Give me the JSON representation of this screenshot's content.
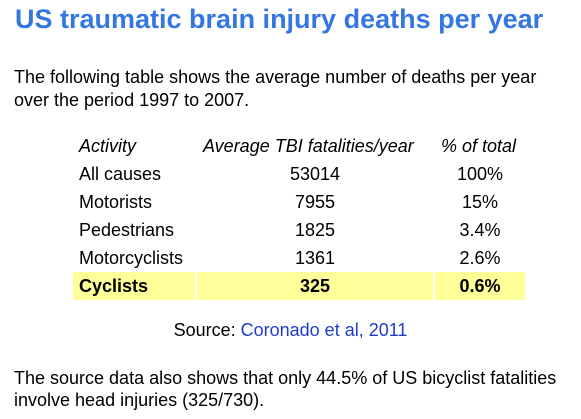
{
  "title": "US traumatic brain injury deaths per year",
  "intro": "The following table shows the average number of deaths per year over the period 1997 to 2007.",
  "table": {
    "headers": [
      "Activity",
      "Average TBI fatalities/year",
      "% of total"
    ],
    "rows": [
      {
        "activity": "All causes",
        "average": "53014",
        "percent": "100%"
      },
      {
        "activity": "Motorists",
        "average": "7955",
        "percent": "15%"
      },
      {
        "activity": "Pedestrians",
        "average": "1825",
        "percent": "3.4%"
      },
      {
        "activity": "Motorcyclists",
        "average": "1361",
        "percent": "2.6%"
      },
      {
        "activity": "Cyclists",
        "average": "325",
        "percent": "0.6%"
      }
    ],
    "highlight_color": "#ffff99"
  },
  "source": {
    "label": "Source: ",
    "link_text": "Coronado et al, 2011",
    "link_color": "#1f3cc7"
  },
  "footer": "The source data also shows that only 44.5% of US bicyclist fatalities involve head injuries (325/730).",
  "colors": {
    "title": "#3477e0"
  }
}
